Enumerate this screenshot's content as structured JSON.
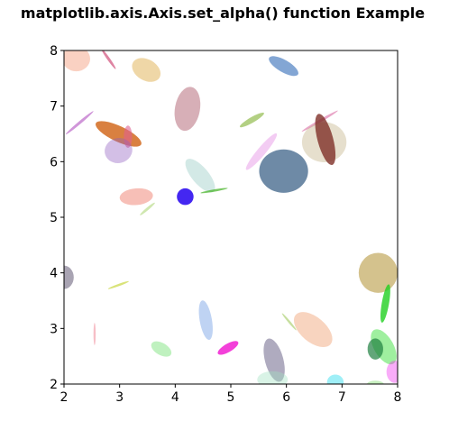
{
  "chart_data": {
    "type": "scatter",
    "title": "matplotlib.axis.Axis.set_alpha() function Example",
    "xlabel": "",
    "ylabel": "",
    "xlim": [
      2,
      8
    ],
    "ylim": [
      2,
      8
    ],
    "xticks": [
      "2",
      "3",
      "4",
      "5",
      "6",
      "7",
      "8"
    ],
    "yticks": [
      "2",
      "3",
      "4",
      "5",
      "6",
      "7",
      "8"
    ],
    "grid": false,
    "marker": "ellipse",
    "ellipses": [
      {
        "x": 2.22,
        "y": 7.85,
        "w": 0.5,
        "h": 0.45,
        "angle": 0,
        "color": "#f7b39a",
        "alpha": 0.6
      },
      {
        "x": 2.8,
        "y": 7.85,
        "w": 0.05,
        "h": 0.45,
        "angle": 35,
        "color": "#d0507a",
        "alpha": 0.7
      },
      {
        "x": 3.48,
        "y": 7.65,
        "w": 0.55,
        "h": 0.38,
        "angle": -30,
        "color": "#e0b050",
        "alpha": 0.5
      },
      {
        "x": 5.95,
        "y": 7.72,
        "w": 0.6,
        "h": 0.22,
        "angle": -30,
        "color": "#1d5db0",
        "alpha": 0.55
      },
      {
        "x": 4.22,
        "y": 6.95,
        "w": 0.45,
        "h": 0.8,
        "angle": -10,
        "color": "#b06070",
        "alpha": 0.5
      },
      {
        "x": 2.28,
        "y": 6.7,
        "w": 0.05,
        "h": 0.65,
        "angle": -50,
        "color": "#b050c0",
        "alpha": 0.6
      },
      {
        "x": 2.98,
        "y": 6.5,
        "w": 0.9,
        "h": 0.28,
        "angle": -25,
        "color": "#d06010",
        "alpha": 0.8
      },
      {
        "x": 3.15,
        "y": 6.45,
        "w": 0.15,
        "h": 0.4,
        "angle": 0,
        "color": "#e06090",
        "alpha": 0.6
      },
      {
        "x": 2.98,
        "y": 6.2,
        "w": 0.5,
        "h": 0.45,
        "angle": 15,
        "color": "#9060c0",
        "alpha": 0.4
      },
      {
        "x": 4.45,
        "y": 5.75,
        "w": 0.3,
        "h": 0.75,
        "angle": 40,
        "color": "#90c8c0",
        "alpha": 0.4
      },
      {
        "x": 4.18,
        "y": 5.37,
        "w": 0.3,
        "h": 0.3,
        "angle": 0,
        "color": "#3010f0",
        "alpha": 0.9
      },
      {
        "x": 4.7,
        "y": 5.48,
        "w": 0.5,
        "h": 0.04,
        "angle": 10,
        "color": "#40b020",
        "alpha": 0.7
      },
      {
        "x": 3.3,
        "y": 5.37,
        "w": 0.6,
        "h": 0.3,
        "angle": 5,
        "color": "#f08070",
        "alpha": 0.5
      },
      {
        "x": 3.5,
        "y": 5.15,
        "w": 0.05,
        "h": 0.35,
        "angle": -50,
        "color": "#a0d060",
        "alpha": 0.5
      },
      {
        "x": 5.38,
        "y": 6.75,
        "w": 0.5,
        "h": 0.1,
        "angle": 30,
        "color": "#80b030",
        "alpha": 0.6
      },
      {
        "x": 5.55,
        "y": 6.18,
        "w": 0.15,
        "h": 0.85,
        "angle": -40,
        "color": "#e080e0",
        "alpha": 0.4
      },
      {
        "x": 5.95,
        "y": 5.83,
        "w": 0.88,
        "h": 0.78,
        "angle": 0,
        "color": "#305880",
        "alpha": 0.7
      },
      {
        "x": 6.6,
        "y": 6.73,
        "w": 0.05,
        "h": 0.75,
        "angle": -60,
        "color": "#e080b0",
        "alpha": 0.7
      },
      {
        "x": 6.68,
        "y": 6.35,
        "w": 0.8,
        "h": 0.72,
        "angle": 0,
        "color": "#c8b890",
        "alpha": 0.45
      },
      {
        "x": 6.7,
        "y": 6.4,
        "w": 0.28,
        "h": 0.95,
        "angle": 15,
        "color": "#803028",
        "alpha": 0.8
      },
      {
        "x": 2.0,
        "y": 3.92,
        "w": 0.35,
        "h": 0.42,
        "angle": 0,
        "color": "#706880",
        "alpha": 0.6
      },
      {
        "x": 2.98,
        "y": 3.78,
        "w": 0.4,
        "h": 0.04,
        "angle": 20,
        "color": "#c0d020",
        "alpha": 0.6
      },
      {
        "x": 2.55,
        "y": 2.9,
        "w": 0.04,
        "h": 0.4,
        "angle": 0,
        "color": "#f08090",
        "alpha": 0.5
      },
      {
        "x": 4.55,
        "y": 3.15,
        "w": 0.22,
        "h": 0.72,
        "angle": 10,
        "color": "#6090e0",
        "alpha": 0.4
      },
      {
        "x": 3.75,
        "y": 2.63,
        "w": 0.4,
        "h": 0.22,
        "angle": -30,
        "color": "#70e070",
        "alpha": 0.45
      },
      {
        "x": 4.95,
        "y": 2.65,
        "w": 0.42,
        "h": 0.15,
        "angle": 30,
        "color": "#f010d0",
        "alpha": 0.8
      },
      {
        "x": 5.78,
        "y": 2.43,
        "w": 0.33,
        "h": 0.8,
        "angle": 15,
        "color": "#605880",
        "alpha": 0.5
      },
      {
        "x": 6.05,
        "y": 3.12,
        "w": 0.04,
        "h": 0.4,
        "angle": 40,
        "color": "#90c040",
        "alpha": 0.5
      },
      {
        "x": 6.48,
        "y": 2.98,
        "w": 0.45,
        "h": 0.82,
        "angle": 50,
        "color": "#f0a070",
        "alpha": 0.45
      },
      {
        "x": 7.65,
        "y": 4.0,
        "w": 0.7,
        "h": 0.72,
        "angle": 0,
        "color": "#b09030",
        "alpha": 0.55
      },
      {
        "x": 7.78,
        "y": 3.45,
        "w": 0.13,
        "h": 0.7,
        "angle": -10,
        "color": "#20d020",
        "alpha": 0.8
      },
      {
        "x": 7.75,
        "y": 2.67,
        "w": 0.35,
        "h": 0.7,
        "angle": 30,
        "color": "#40e040",
        "alpha": 0.5
      },
      {
        "x": 7.6,
        "y": 2.63,
        "w": 0.28,
        "h": 0.38,
        "angle": 0,
        "color": "#208040",
        "alpha": 0.7
      },
      {
        "x": 7.95,
        "y": 2.22,
        "w": 0.3,
        "h": 0.4,
        "angle": 0,
        "color": "#f030f0",
        "alpha": 0.4
      },
      {
        "x": 6.88,
        "y": 2.03,
        "w": 0.3,
        "h": 0.28,
        "angle": 0,
        "color": "#40e0f0",
        "alpha": 0.5
      },
      {
        "x": 5.75,
        "y": 2.08,
        "w": 0.55,
        "h": 0.3,
        "angle": 0,
        "color": "#a0e0c0",
        "alpha": 0.4
      },
      {
        "x": 7.6,
        "y": 2.0,
        "w": 0.3,
        "h": 0.12,
        "angle": 0,
        "color": "#90e080",
        "alpha": 0.5
      }
    ]
  }
}
